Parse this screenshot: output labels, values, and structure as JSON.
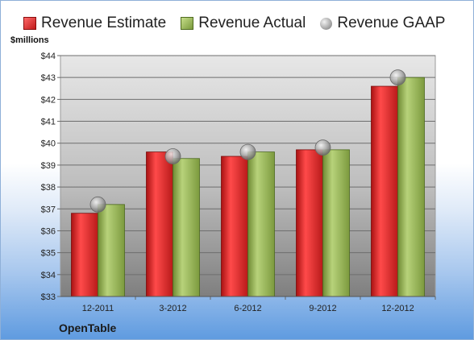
{
  "chart_data": {
    "type": "bar",
    "title": "",
    "ylabel": "$millions",
    "xlabel": "",
    "categories": [
      "12-2011",
      "3-2012",
      "6-2012",
      "9-2012",
      "12-2012"
    ],
    "series": [
      {
        "name": "Revenue Estimate",
        "kind": "bar",
        "color": "#d32020",
        "values": [
          36.8,
          39.6,
          39.4,
          39.7,
          42.6
        ]
      },
      {
        "name": "Revenue Actual",
        "kind": "bar",
        "color": "#8fab4a",
        "values": [
          37.2,
          39.3,
          39.6,
          39.7,
          43.0
        ]
      },
      {
        "name": "Revenue GAAP",
        "kind": "marker",
        "color": "#a0a0a0",
        "values": [
          37.2,
          39.4,
          39.6,
          39.8,
          43.0
        ]
      }
    ],
    "ylim": [
      33,
      44
    ],
    "yticks": [
      "$33",
      "$34",
      "$35",
      "$36",
      "$37",
      "$38",
      "$39",
      "$40",
      "$41",
      "$42",
      "$43",
      "$44"
    ],
    "grid": true,
    "legend_position": "top"
  },
  "footer": {
    "company": "OpenTable"
  }
}
